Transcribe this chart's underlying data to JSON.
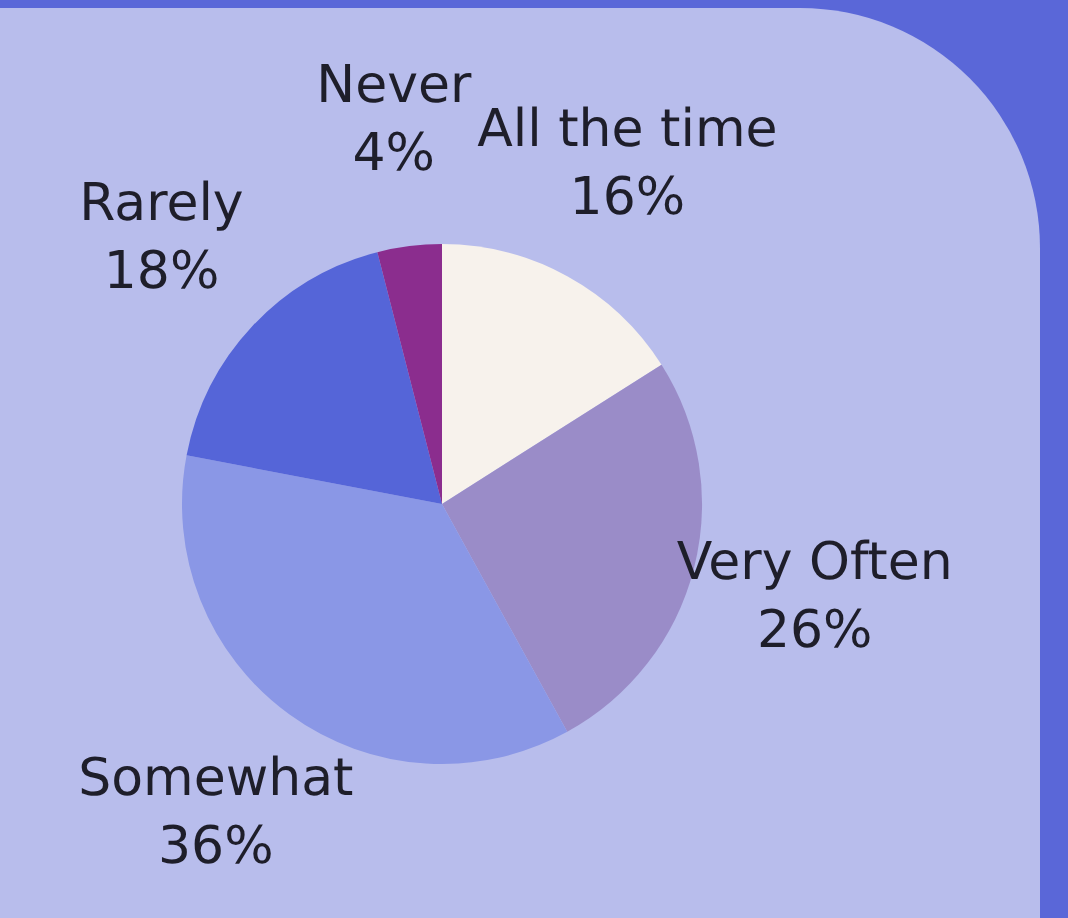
{
  "chart_data": {
    "type": "pie",
    "categories": [
      "All the time",
      "Very Often",
      "Somewhat",
      "Rarely",
      "Never"
    ],
    "values": [
      16,
      26,
      36,
      18,
      4
    ],
    "value_labels": [
      "16%",
      "26%",
      "36%",
      "18%",
      "4%"
    ],
    "colors": [
      "#f7f2ec",
      "#9a8cc8",
      "#8a97e6",
      "#5565d8",
      "#8b2d8e"
    ],
    "legend": false
  }
}
